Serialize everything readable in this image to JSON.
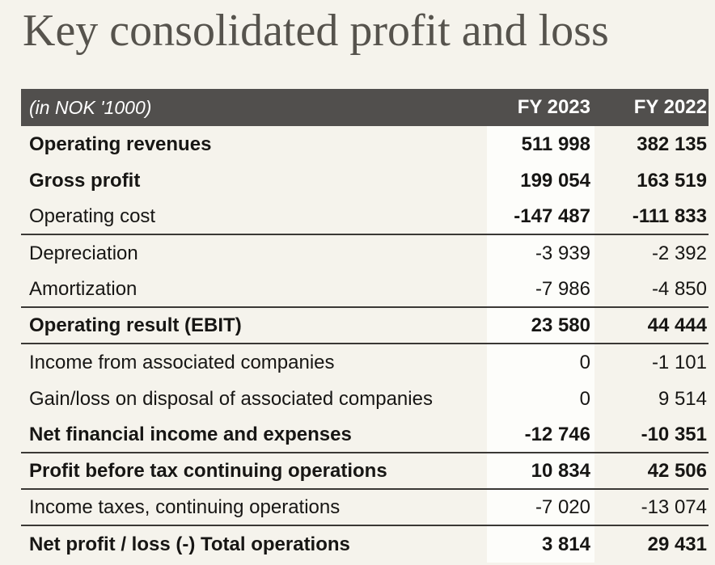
{
  "title": "Key consolidated profit and loss",
  "colors": {
    "page_bg": "#f5f3ec",
    "header_bg": "#514f4d",
    "header_text": "#ffffff",
    "band_bg": "#fdfdfa",
    "rule": "#3a3835",
    "title_text": "#56534d",
    "body_text": "#171614"
  },
  "table": {
    "unit_label": "(in NOK '1000)",
    "columns": [
      "FY 2023",
      "FY 2022"
    ],
    "rows": [
      {
        "label": "Operating revenues",
        "fy2023": "511 998",
        "fy2022": "382 135",
        "bold_label": true,
        "bold_values": true,
        "rule_after": false
      },
      {
        "label": "Gross profit",
        "fy2023": "199 054",
        "fy2022": "163 519",
        "bold_label": true,
        "bold_values": true,
        "rule_after": false
      },
      {
        "label": "Operating cost",
        "fy2023": "-147 487",
        "fy2022": "-111 833",
        "bold_label": false,
        "bold_values": true,
        "rule_after": true
      },
      {
        "label": "Depreciation",
        "fy2023": "-3 939",
        "fy2022": "-2 392",
        "bold_label": false,
        "bold_values": false,
        "rule_after": false
      },
      {
        "label": "Amortization",
        "fy2023": "-7 986",
        "fy2022": "-4 850",
        "bold_label": false,
        "bold_values": false,
        "rule_after": true
      },
      {
        "label": "Operating result (EBIT)",
        "fy2023": "23 580",
        "fy2022": "44 444",
        "bold_label": true,
        "bold_values": true,
        "rule_after": true
      },
      {
        "label": "Income from associated companies",
        "fy2023": "0",
        "fy2022": "-1 101",
        "bold_label": false,
        "bold_values": false,
        "rule_after": false
      },
      {
        "label": "Gain/loss on disposal of associated companies",
        "fy2023": "0",
        "fy2022": "9 514",
        "bold_label": false,
        "bold_values": false,
        "rule_after": false
      },
      {
        "label": "Net financial income and expenses",
        "fy2023": "-12 746",
        "fy2022": "-10 351",
        "bold_label": true,
        "bold_values": true,
        "rule_after": true
      },
      {
        "label": "Profit before tax continuing operations",
        "fy2023": "10 834",
        "fy2022": "42 506",
        "bold_label": true,
        "bold_values": true,
        "rule_after": true
      },
      {
        "label": "Income taxes, continuing operations",
        "fy2023": "-7 020",
        "fy2022": "-13 074",
        "bold_label": false,
        "bold_values": false,
        "rule_after": true
      },
      {
        "label": "Net profit / loss (-) Total operations",
        "fy2023": "3 814",
        "fy2022": "29 431",
        "bold_label": true,
        "bold_values": true,
        "rule_after": false
      }
    ]
  }
}
